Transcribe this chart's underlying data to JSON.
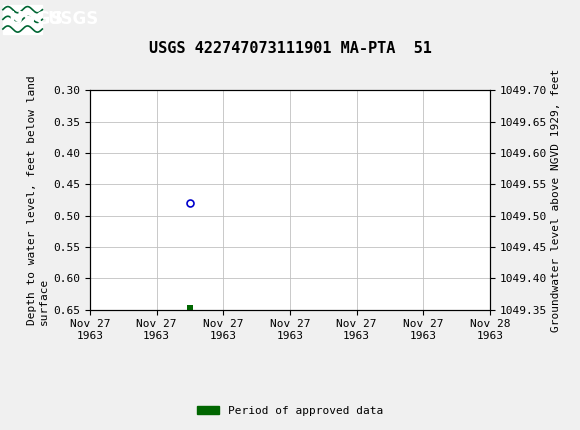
{
  "title": "USGS 422747073111901 MA-PTA  51",
  "title_fontsize": 11,
  "header_color": "#006633",
  "background_color": "#f0f0f0",
  "plot_bg_color": "#ffffff",
  "grid_color": "#c0c0c0",
  "left_ylabel": "Depth to water level, feet below land\nsurface",
  "right_ylabel": "Groundwater level above NGVD 1929, feet",
  "ylim_left": [
    0.3,
    0.65
  ],
  "ylim_right": [
    1049.35,
    1049.7
  ],
  "yticks_left": [
    0.3,
    0.35,
    0.4,
    0.45,
    0.5,
    0.55,
    0.6,
    0.65
  ],
  "yticks_right": [
    1049.35,
    1049.4,
    1049.45,
    1049.5,
    1049.55,
    1049.6,
    1049.65,
    1049.7
  ],
  "data_point_x_hours": 6,
  "data_point_y": 0.48,
  "data_point_color": "#0000cc",
  "green_marker_x_hours": 6,
  "green_marker_color": "#006600",
  "x_start_day": 0,
  "x_end_day": 1,
  "xtick_hours": [
    0,
    4,
    8,
    12,
    16,
    20,
    24
  ],
  "xtick_labels": [
    "Nov 27\n1963",
    "Nov 27\n1963",
    "Nov 27\n1963",
    "Nov 27\n1963",
    "Nov 27\n1963",
    "Nov 27\n1963",
    "Nov 28\n1963"
  ],
  "legend_label": "Period of approved data",
  "legend_color": "#006600",
  "font_size": 8,
  "tick_font_size": 8,
  "label_font_size": 8
}
